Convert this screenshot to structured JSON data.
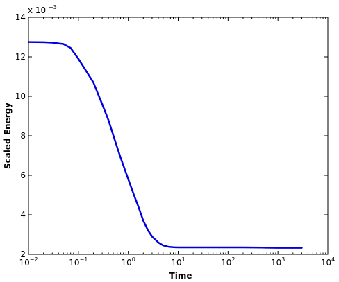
{
  "chart_data": {
    "type": "line",
    "xlabel": "Time",
    "ylabel": "Scaled Energy",
    "x_scale": "log",
    "xlim": [
      0.01,
      10000
    ],
    "ylim": [
      0.002,
      0.014
    ],
    "y_multiplier_label": "x 10",
    "y_multiplier_exponent": "−3",
    "x_ticks": [
      {
        "value": 0.01,
        "base": "10",
        "exp": "−2"
      },
      {
        "value": 0.1,
        "base": "10",
        "exp": "−1"
      },
      {
        "value": 1,
        "base": "10",
        "exp": "0"
      },
      {
        "value": 10,
        "base": "10",
        "exp": "1"
      },
      {
        "value": 100,
        "base": "10",
        "exp": "2"
      },
      {
        "value": 1000,
        "base": "10",
        "exp": "3"
      },
      {
        "value": 10000,
        "base": "10",
        "exp": "4"
      }
    ],
    "y_ticks": [
      {
        "value": 0.002,
        "label": "2"
      },
      {
        "value": 0.004,
        "label": "4"
      },
      {
        "value": 0.006,
        "label": "6"
      },
      {
        "value": 0.008,
        "label": "8"
      },
      {
        "value": 0.01,
        "label": "10"
      },
      {
        "value": 0.012,
        "label": "12"
      },
      {
        "value": 0.014,
        "label": "14"
      }
    ],
    "grid": false,
    "series": [
      {
        "color": "#0000dd",
        "x": [
          0.01,
          0.02,
          0.03,
          0.05,
          0.07,
          0.1,
          0.13,
          0.2,
          0.3,
          0.4,
          0.55,
          0.7,
          0.85,
          1.0,
          1.3,
          1.6,
          2.0,
          2.5,
          3.0,
          4.0,
          5.0,
          6.5,
          8.0,
          10,
          20,
          50,
          100,
          200,
          500,
          1000,
          2000,
          3000
        ],
        "y": [
          0.01275,
          0.01274,
          0.01272,
          0.01265,
          0.01245,
          0.0119,
          0.01145,
          0.0107,
          0.0096,
          0.0088,
          0.0077,
          0.0069,
          0.0063,
          0.0058,
          0.005,
          0.0044,
          0.0037,
          0.0032,
          0.0029,
          0.0026,
          0.00245,
          0.00238,
          0.00236,
          0.00235,
          0.00235,
          0.00235,
          0.00235,
          0.00235,
          0.00234,
          0.00233,
          0.00233,
          0.00233
        ]
      }
    ]
  }
}
